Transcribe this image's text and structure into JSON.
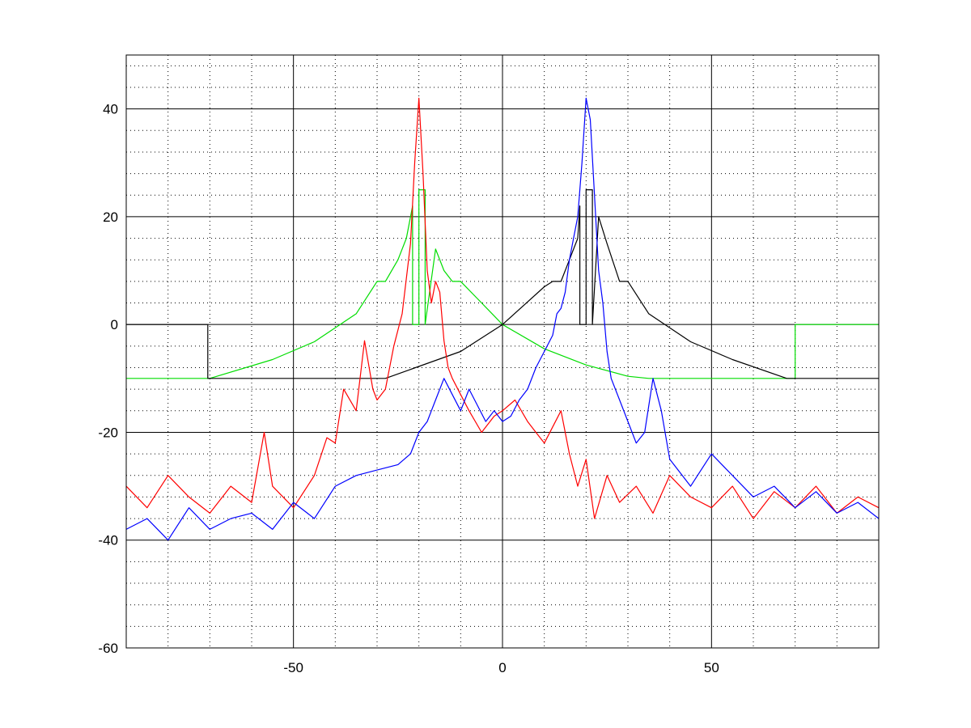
{
  "chart_data": {
    "type": "line",
    "title": "",
    "xlabel": "",
    "ylabel": "",
    "xlim": [
      -90,
      90
    ],
    "ylim": [
      -60,
      50
    ],
    "grid": true,
    "x_ticks": [
      -50,
      0,
      50
    ],
    "x_tick_labels": [
      "-50",
      "0",
      "50"
    ],
    "y_ticks": [
      -60,
      -40,
      -20,
      0,
      20,
      40
    ],
    "y_tick_labels": [
      "-60",
      "-40",
      "-20",
      "0",
      "20",
      "40"
    ],
    "x_minor_step": 10,
    "y_minor_step": 4,
    "series": [
      {
        "color": "#00dd00",
        "x": [
          -90,
          -70,
          -55,
          -45,
          -35,
          -30,
          -28,
          -25,
          -23,
          -21.5,
          -21.5,
          -20,
          -20,
          -18.5,
          -18.5,
          -16,
          -14,
          -12,
          -10,
          -5,
          0,
          10,
          20,
          30,
          35,
          50,
          70,
          70,
          90
        ],
        "values": [
          -10,
          -10,
          -6.5,
          -3.2,
          2,
          8,
          8,
          12,
          16,
          22,
          0,
          0,
          25,
          25,
          0,
          14,
          10,
          8,
          8,
          4,
          0,
          -4.5,
          -7.5,
          -9.6,
          -10,
          -10,
          -10,
          0,
          0
        ]
      },
      {
        "color": "#000000",
        "x": [
          -90,
          -70.5,
          -70.5,
          -30,
          -28,
          -10,
          0,
          5,
          10,
          12,
          14,
          16,
          18,
          18.5,
          18.5,
          20,
          20,
          21.5,
          21.5,
          23,
          25,
          28,
          30,
          35,
          45,
          55,
          68,
          90
        ],
        "values": [
          0,
          0,
          -10,
          -10,
          -10,
          -5,
          0,
          3.5,
          7,
          8,
          8,
          12,
          16,
          22,
          0,
          0,
          25,
          25,
          0,
          20,
          15,
          8,
          8,
          2,
          -3.2,
          -6.5,
          -10,
          -10
        ]
      },
      {
        "color": "#ff0000",
        "x": [
          -90,
          -85,
          -80,
          -75,
          -70,
          -65,
          -60,
          -57,
          -55,
          -50,
          -45,
          -42,
          -40,
          -38,
          -35,
          -33,
          -31,
          -30,
          -28,
          -26,
          -24,
          -22,
          -21,
          -20,
          -19,
          -18,
          -17,
          -16,
          -15,
          -14,
          -13,
          -12,
          -10,
          -8,
          -5,
          -2,
          0,
          3,
          6,
          8,
          10,
          12,
          14,
          16,
          18,
          20,
          22,
          25,
          28,
          32,
          36,
          40,
          45,
          50,
          55,
          60,
          65,
          70,
          75,
          80,
          85,
          90
        ],
        "values": [
          -30,
          -34,
          -28,
          -32,
          -35,
          -30,
          -33,
          -20,
          -30,
          -34,
          -28,
          -21,
          -22,
          -12,
          -16,
          -3,
          -12,
          -14,
          -12,
          -4,
          2,
          15,
          30,
          42,
          28,
          10,
          4,
          8,
          6,
          -3,
          -8,
          -10,
          -13,
          -16,
          -20,
          -17,
          -16,
          -14,
          -18,
          -20,
          -22,
          -19,
          -16,
          -24,
          -30,
          -25,
          -36,
          -28,
          -33,
          -30,
          -35,
          -28,
          -32,
          -34,
          -30,
          -36,
          -31,
          -34,
          -30,
          -35,
          -32,
          -34
        ]
      },
      {
        "color": "#0000ff",
        "x": [
          -90,
          -85,
          -80,
          -75,
          -70,
          -65,
          -60,
          -55,
          -50,
          -45,
          -40,
          -35,
          -30,
          -25,
          -22,
          -20,
          -18,
          -16,
          -14,
          -12,
          -10,
          -8,
          -6,
          -4,
          -2,
          0,
          2,
          4,
          6,
          8,
          10,
          12,
          13,
          14,
          15,
          16,
          17,
          18,
          19,
          20,
          21,
          22,
          23,
          24,
          25,
          26,
          28,
          30,
          32,
          34,
          36,
          38,
          40,
          45,
          50,
          55,
          60,
          65,
          70,
          75,
          80,
          85,
          90
        ],
        "values": [
          -38,
          -36,
          -40,
          -34,
          -38,
          -36,
          -35,
          -38,
          -33,
          -36,
          -30,
          -28,
          -27,
          -26,
          -24,
          -20,
          -18,
          -14,
          -10,
          -13,
          -16,
          -12,
          -15,
          -18,
          -16,
          -18,
          -17,
          -14,
          -12,
          -8,
          -5,
          -2,
          2,
          3,
          6,
          12,
          16,
          20,
          30,
          42,
          38,
          24,
          10,
          4,
          -5,
          -10,
          -14,
          -18,
          -22,
          -20,
          -10,
          -16,
          -25,
          -30,
          -24,
          -28,
          -32,
          -30,
          -34,
          -31,
          -35,
          -33,
          -36
        ]
      }
    ]
  }
}
